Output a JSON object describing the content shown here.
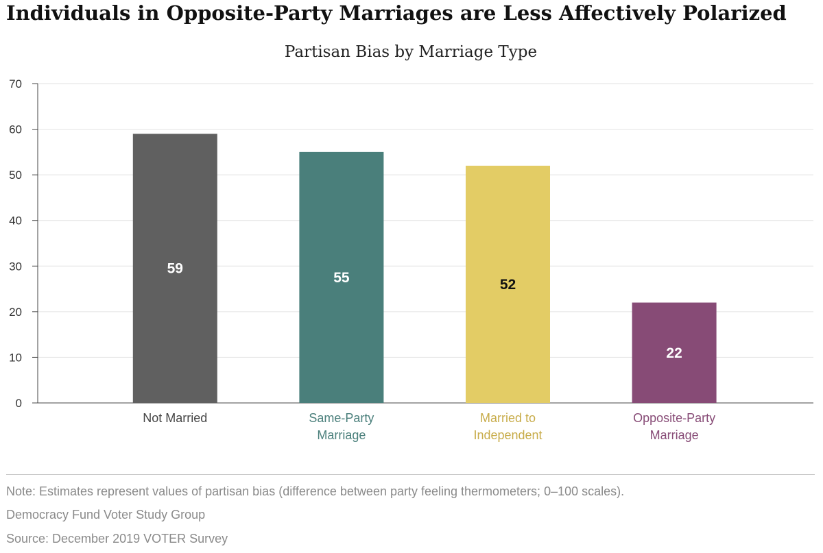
{
  "header": {
    "title": "Individuals in Opposite-Party Marriages are Less Affectively Polarized"
  },
  "chart_data": {
    "type": "bar",
    "title": "Partisan Bias by Marriage Type",
    "categories": [
      [
        "Not Married"
      ],
      [
        "Same-Party",
        "Marriage"
      ],
      [
        "Married to",
        "Independent"
      ],
      [
        "Opposite-Party",
        "Marriage"
      ]
    ],
    "values": [
      59,
      55,
      52,
      22
    ],
    "ylim": [
      0,
      70
    ],
    "yticks": [
      0,
      10,
      20,
      30,
      40,
      50,
      60,
      70
    ],
    "grid": true,
    "colors": [
      "#606060",
      "#4a7f7b",
      "#e3cc65",
      "#874b76"
    ],
    "label_colors": [
      "#444444",
      "#4a7f7b",
      "#c8ac4a",
      "#874b76"
    ],
    "value_label_colors": [
      "#ffffff",
      "#ffffff",
      "#111111",
      "#ffffff"
    ]
  },
  "footer": {
    "note": "Note: Estimates represent values of partisan bias (difference between party feeling thermometers; 0–100 scales).",
    "org": "Democracy Fund Voter Study Group",
    "source": "Source: December 2019 VOTER Survey"
  }
}
